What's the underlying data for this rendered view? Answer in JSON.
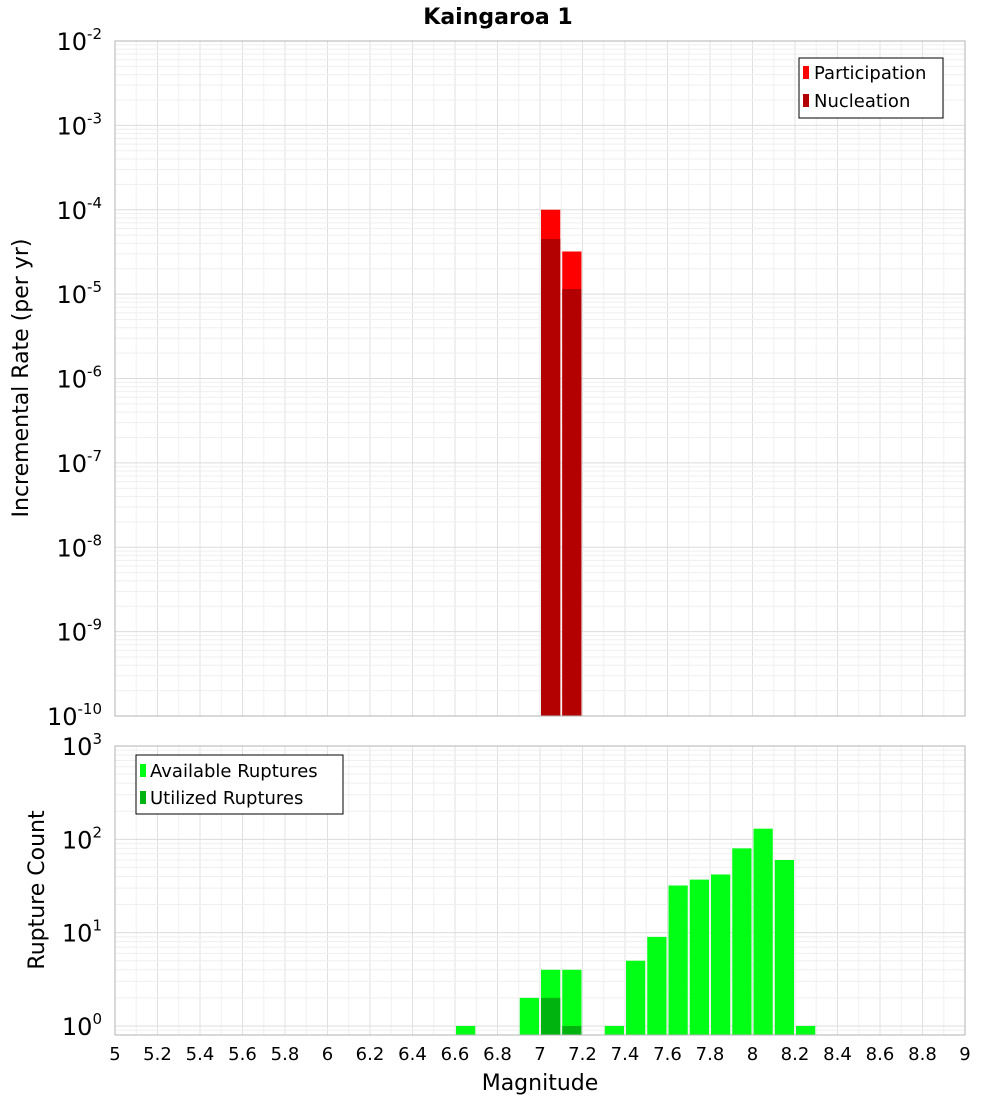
{
  "title": "Kaingaroa 1",
  "colors": {
    "participation": "#ff0000",
    "nucleation": "#b30000",
    "available": "#00ff14",
    "utilized": "#00b30e",
    "grid": "#e6e6e6",
    "frame": "#b3b3b3"
  },
  "chart_data": [
    {
      "type": "bar",
      "title": "Kaingaroa 1",
      "xlabel": "",
      "ylabel": "Incremental Rate (per yr)",
      "xlim": [
        5,
        9
      ],
      "ylim": [
        1e-10,
        0.01
      ],
      "yscale": "log",
      "bin_width": 0.1,
      "ytick_exponents": [
        "-10",
        "-9",
        "-8",
        "-7",
        "-6",
        "-5",
        "-4",
        "-3",
        "-2"
      ],
      "legend": {
        "position": "top-right",
        "entries": [
          "Participation",
          "Nucleation"
        ]
      },
      "series": [
        {
          "name": "Participation",
          "x": [
            7.05,
            7.15
          ],
          "values": [
            0.0001,
            3.2e-05
          ]
        },
        {
          "name": "Nucleation",
          "x": [
            7.05,
            7.15
          ],
          "values": [
            4.5e-05,
            1.15e-05
          ]
        }
      ]
    },
    {
      "type": "bar",
      "title": "",
      "xlabel": "Magnitude",
      "ylabel": "Rupture Count",
      "xlim": [
        5,
        9
      ],
      "ylim": [
        0.8,
        1000
      ],
      "yscale": "log",
      "bin_width": 0.1,
      "ytick_exponents": [
        "0",
        "1",
        "2",
        "3"
      ],
      "xticks": [
        "5",
        "5.2",
        "5.4",
        "5.6",
        "5.8",
        "6",
        "6.2",
        "6.4",
        "6.6",
        "6.8",
        "7",
        "7.2",
        "7.4",
        "7.6",
        "7.8",
        "8",
        "8.2",
        "8.4",
        "8.6",
        "8.8",
        "9"
      ],
      "legend": {
        "position": "top-left",
        "entries": [
          "Available Ruptures",
          "Utilized Ruptures"
        ]
      },
      "series": [
        {
          "name": "Available Ruptures",
          "x": [
            6.65,
            6.95,
            7.05,
            7.15,
            7.35,
            7.45,
            7.55,
            7.65,
            7.75,
            7.85,
            7.95,
            8.05,
            8.15,
            8.25
          ],
          "values": [
            1,
            2,
            4,
            4,
            1,
            5,
            9,
            32,
            37,
            42,
            80,
            130,
            60,
            1
          ]
        },
        {
          "name": "Utilized Ruptures",
          "x": [
            7.05,
            7.15
          ],
          "values": [
            2,
            1
          ]
        }
      ]
    }
  ]
}
